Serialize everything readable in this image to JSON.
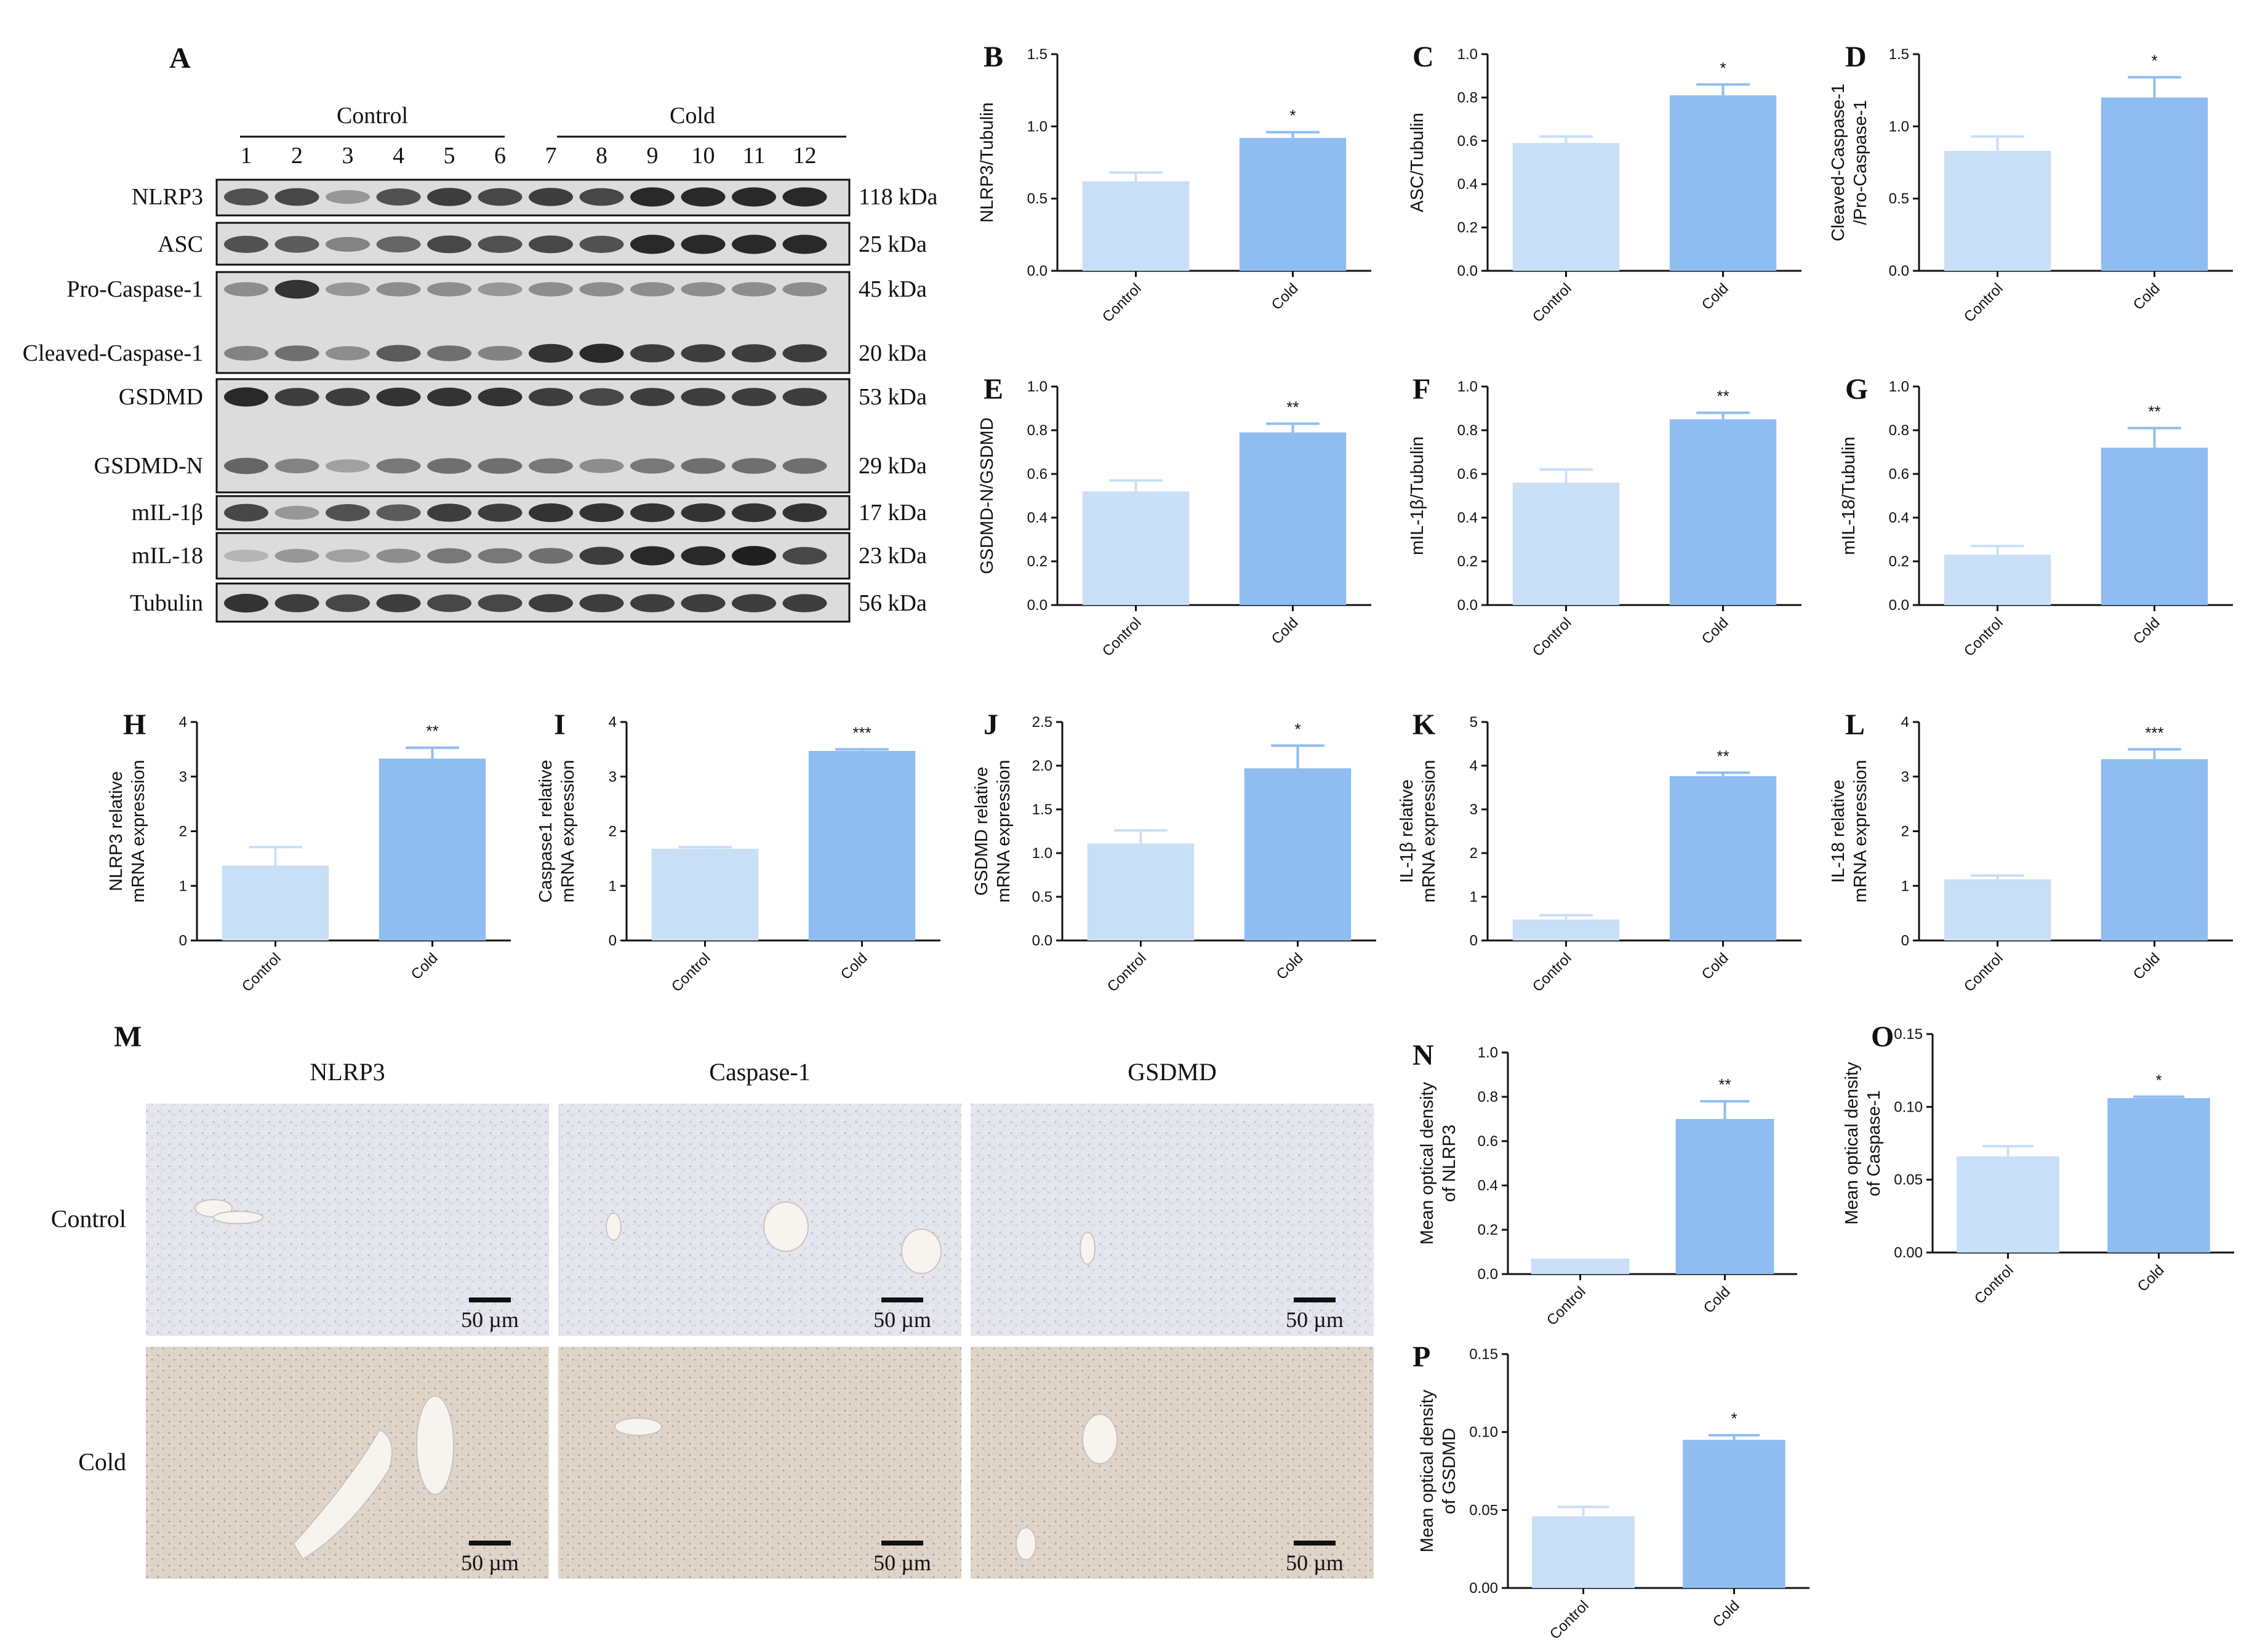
{
  "colors": {
    "control_bar": "#c9dff7",
    "cold_bar": "#8fbdf2",
    "axis": "#111111"
  },
  "blot": {
    "letter": "A",
    "group_labels": [
      "Control",
      "Cold"
    ],
    "lanes": [
      "1",
      "2",
      "3",
      "4",
      "5",
      "6",
      "7",
      "8",
      "9",
      "10",
      "11",
      "12"
    ],
    "rows": [
      {
        "label": "NLRP3",
        "kda": "118 kDa"
      },
      {
        "label": "ASC",
        "kda": "25 kDa"
      },
      {
        "label": "Pro-Caspase-1",
        "kda": "45 kDa"
      },
      {
        "label": "Cleaved-Caspase-1",
        "kda": "20 kDa"
      },
      {
        "label": "GSDMD",
        "kda": "53 kDa"
      },
      {
        "label": "GSDMD-N",
        "kda": "29 kDa"
      },
      {
        "label": "mIL-1β",
        "kda": "17 kDa"
      },
      {
        "label": "mIL-18",
        "kda": "23 kDa"
      },
      {
        "label": "Tubulin",
        "kda": "56 kDa"
      }
    ],
    "band_intensity": {
      "NLRP3": [
        0.75,
        0.8,
        0.4,
        0.75,
        0.85,
        0.8,
        0.85,
        0.8,
        0.95,
        0.95,
        0.95,
        0.95
      ],
      "ASC": [
        0.75,
        0.7,
        0.5,
        0.65,
        0.8,
        0.75,
        0.8,
        0.75,
        0.95,
        0.95,
        0.95,
        0.95
      ],
      "Pro-Caspase-1": [
        0.45,
        0.9,
        0.4,
        0.45,
        0.45,
        0.4,
        0.45,
        0.45,
        0.45,
        0.45,
        0.45,
        0.45
      ],
      "Cleaved-Caspase-1": [
        0.5,
        0.6,
        0.45,
        0.7,
        0.6,
        0.5,
        0.9,
        0.95,
        0.85,
        0.85,
        0.85,
        0.85
      ],
      "GSDMD": [
        0.95,
        0.85,
        0.85,
        0.9,
        0.9,
        0.9,
        0.85,
        0.8,
        0.85,
        0.85,
        0.85,
        0.85
      ],
      "GSDMD-N": [
        0.65,
        0.5,
        0.35,
        0.55,
        0.6,
        0.6,
        0.55,
        0.45,
        0.55,
        0.6,
        0.6,
        0.6
      ],
      "mIL-1β": [
        0.8,
        0.4,
        0.75,
        0.7,
        0.85,
        0.85,
        0.9,
        0.9,
        0.9,
        0.9,
        0.9,
        0.9
      ],
      "mIL-18": [
        0.25,
        0.4,
        0.35,
        0.45,
        0.55,
        0.55,
        0.6,
        0.85,
        0.95,
        0.95,
        1.0,
        0.8
      ],
      "Tubulin": [
        0.9,
        0.85,
        0.8,
        0.85,
        0.8,
        0.8,
        0.85,
        0.85,
        0.85,
        0.85,
        0.85,
        0.85
      ]
    }
  },
  "ihc": {
    "letter": "M",
    "columns": [
      "NLRP3",
      "Caspase-1",
      "GSDMD"
    ],
    "rows": [
      "Control",
      "Cold"
    ],
    "scale_bar": "50 µm"
  },
  "chart_data": [
    {
      "id": "B",
      "type": "bar",
      "categories": [
        "Control",
        "Cold"
      ],
      "values": [
        0.62,
        0.92
      ],
      "errors": [
        0.06,
        0.04
      ],
      "ylabel": [
        "NLRP3/Tubulin"
      ],
      "ylim": [
        0,
        1.5
      ],
      "yticks": [
        "0.0",
        "0.5",
        "1.0",
        "1.5"
      ],
      "significance": "*"
    },
    {
      "id": "C",
      "type": "bar",
      "categories": [
        "Control",
        "Cold"
      ],
      "values": [
        0.59,
        0.81
      ],
      "errors": [
        0.03,
        0.05
      ],
      "ylabel": [
        "ASC/Tubulin"
      ],
      "ylim": [
        0,
        1.0
      ],
      "yticks": [
        "0.0",
        "0.2",
        "0.4",
        "0.6",
        "0.8",
        "1.0"
      ],
      "significance": "*"
    },
    {
      "id": "D",
      "type": "bar",
      "categories": [
        "Control",
        "Cold"
      ],
      "values": [
        0.83,
        1.2
      ],
      "errors": [
        0.1,
        0.14
      ],
      "ylabel": [
        "Cleaved-Caspase-1",
        "/Pro-Caspase-1"
      ],
      "ylim": [
        0,
        1.5
      ],
      "yticks": [
        "0.0",
        "0.5",
        "1.0",
        "1.5"
      ],
      "significance": "*"
    },
    {
      "id": "E",
      "type": "bar",
      "categories": [
        "Control",
        "Cold"
      ],
      "values": [
        0.52,
        0.79
      ],
      "errors": [
        0.05,
        0.04
      ],
      "ylabel": [
        "GSDMD-N/GSDMD"
      ],
      "ylim": [
        0,
        1.0
      ],
      "yticks": [
        "0.0",
        "0.2",
        "0.4",
        "0.6",
        "0.8",
        "1.0"
      ],
      "significance": "**"
    },
    {
      "id": "F",
      "type": "bar",
      "categories": [
        "Control",
        "Cold"
      ],
      "values": [
        0.56,
        0.85
      ],
      "errors": [
        0.06,
        0.03
      ],
      "ylabel": [
        "mIL-1β/Tubulin"
      ],
      "ylim": [
        0,
        1.0
      ],
      "yticks": [
        "0.0",
        "0.2",
        "0.4",
        "0.6",
        "0.8",
        "1.0"
      ],
      "significance": "**"
    },
    {
      "id": "G",
      "type": "bar",
      "categories": [
        "Control",
        "Cold"
      ],
      "values": [
        0.23,
        0.72
      ],
      "errors": [
        0.04,
        0.09
      ],
      "ylabel": [
        "mIL-18/Tubulin"
      ],
      "ylim": [
        0,
        1.0
      ],
      "yticks": [
        "0.0",
        "0.2",
        "0.4",
        "0.6",
        "0.8",
        "1.0"
      ],
      "significance": "**"
    },
    {
      "id": "H",
      "type": "bar",
      "categories": [
        "Control",
        "Cold"
      ],
      "values": [
        1.37,
        3.33
      ],
      "errors": [
        0.34,
        0.2
      ],
      "ylabel": [
        "NLRP3 relative",
        "mRNA expression"
      ],
      "ylim": [
        0,
        4
      ],
      "yticks": [
        "0",
        "1",
        "2",
        "3",
        "4"
      ],
      "significance": "**"
    },
    {
      "id": "I",
      "type": "bar",
      "categories": [
        "Control",
        "Cold"
      ],
      "values": [
        1.68,
        3.47
      ],
      "errors": [
        0.03,
        0.03
      ],
      "ylabel": [
        "Caspase1 relative",
        "mRNA expression"
      ],
      "ylim": [
        0,
        4
      ],
      "yticks": [
        "0",
        "1",
        "2",
        "3",
        "4"
      ],
      "significance": "***"
    },
    {
      "id": "J",
      "type": "bar",
      "categories": [
        "Control",
        "Cold"
      ],
      "values": [
        1.11,
        1.97
      ],
      "errors": [
        0.15,
        0.26
      ],
      "ylabel": [
        "GSDMD relative",
        "mRNA expression"
      ],
      "ylim": [
        0,
        2.5
      ],
      "yticks": [
        "0.0",
        "0.5",
        "1.0",
        "1.5",
        "2.0",
        "2.5"
      ],
      "significance": "*"
    },
    {
      "id": "K",
      "type": "bar",
      "categories": [
        "Control",
        "Cold"
      ],
      "values": [
        0.48,
        3.76
      ],
      "errors": [
        0.1,
        0.08
      ],
      "ylabel": [
        "IL-1β  relative",
        "mRNA expression"
      ],
      "ylim": [
        0,
        5
      ],
      "yticks": [
        "0",
        "1",
        "2",
        "3",
        "4",
        "5"
      ],
      "significance": "**"
    },
    {
      "id": "L",
      "type": "bar",
      "categories": [
        "Control",
        "Cold"
      ],
      "values": [
        1.12,
        3.32
      ],
      "errors": [
        0.07,
        0.18
      ],
      "ylabel": [
        "IL-18 relative",
        "mRNA expression"
      ],
      "ylim": [
        0,
        4
      ],
      "yticks": [
        "0",
        "1",
        "2",
        "3",
        "4"
      ],
      "significance": "***"
    },
    {
      "id": "N",
      "type": "bar",
      "categories": [
        "Control",
        "Cold"
      ],
      "values": [
        0.07,
        0.7
      ],
      "errors": [
        0.0,
        0.08
      ],
      "ylabel": [
        "Mean optical density",
        "of NLRP3"
      ],
      "ylim": [
        0,
        1.0
      ],
      "yticks": [
        "0.0",
        "0.2",
        "0.4",
        "0.6",
        "0.8",
        "1.0"
      ],
      "significance": "**"
    },
    {
      "id": "O",
      "type": "bar",
      "categories": [
        "Control",
        "Cold"
      ],
      "values": [
        0.066,
        0.106
      ],
      "errors": [
        0.007,
        0.001
      ],
      "ylabel": [
        "Mean optical density",
        "of Caspase-1"
      ],
      "ylim": [
        0,
        0.15
      ],
      "yticks": [
        "0.00",
        "0.05",
        "0.10",
        "0.15"
      ],
      "significance": "*"
    },
    {
      "id": "P",
      "type": "bar",
      "categories": [
        "Control",
        "Cold"
      ],
      "values": [
        0.046,
        0.095
      ],
      "errors": [
        0.006,
        0.003
      ],
      "ylabel": [
        "Mean optical density",
        "of GSDMD"
      ],
      "ylim": [
        0,
        0.15
      ],
      "yticks": [
        "0.00",
        "0.05",
        "0.10",
        "0.15"
      ],
      "significance": "*"
    }
  ]
}
